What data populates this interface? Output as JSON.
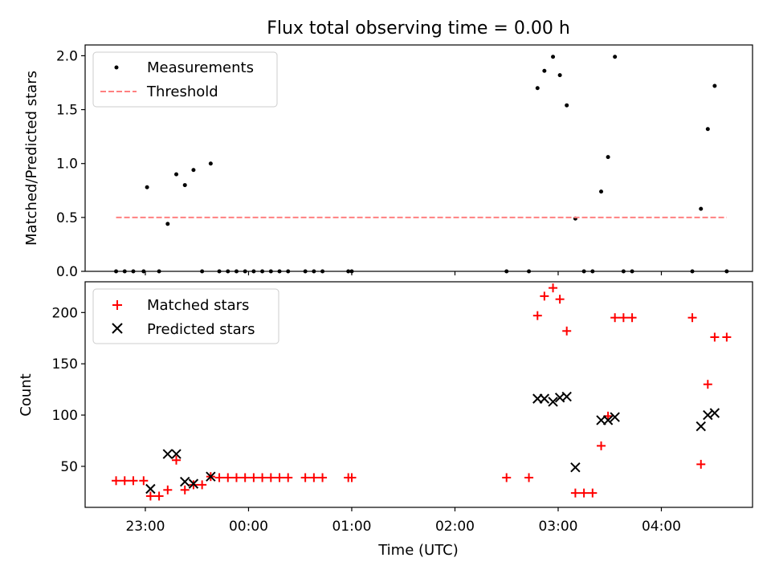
{
  "chart_data": [
    {
      "type": "scatter",
      "title": "Flux total observing time = 0.00 h",
      "xlabel": "",
      "ylabel": "Matched/Predicted stars",
      "xlim": [
        "22:25",
        "04:53"
      ],
      "ylim": [
        0.0,
        2.1
      ],
      "yticks": [
        0.0,
        0.5,
        1.0,
        1.5,
        2.0
      ],
      "ytick_labels": [
        "0.0",
        "0.5",
        "1.0",
        "1.5",
        "2.0"
      ],
      "xticks": [
        "23:00",
        "00:00",
        "01:00",
        "02:00",
        "03:00",
        "04:00"
      ],
      "legend": {
        "position": "top-left",
        "entries": [
          {
            "label": "Measurements",
            "style": "dot",
            "color": "#000000"
          },
          {
            "label": "Threshold",
            "style": "dashed-line",
            "color": "#ff8080"
          }
        ]
      },
      "series": [
        {
          "name": "Measurements",
          "color": "#000000",
          "points": [
            [
              "22:43",
              0
            ],
            [
              "22:48",
              0
            ],
            [
              "22:53",
              0
            ],
            [
              "22:59",
              0
            ],
            [
              "23:01",
              0.78
            ],
            [
              "23:08",
              0
            ],
            [
              "23:13",
              0.44
            ],
            [
              "23:18",
              0.9
            ],
            [
              "23:23",
              0.8
            ],
            [
              "23:28",
              0.94
            ],
            [
              "23:33",
              0
            ],
            [
              "23:38",
              1.0
            ],
            [
              "23:43",
              0
            ],
            [
              "23:48",
              0
            ],
            [
              "23:53",
              0
            ],
            [
              "23:58",
              0
            ],
            [
              "00:03",
              0
            ],
            [
              "00:08",
              0
            ],
            [
              "00:13",
              0
            ],
            [
              "00:18",
              0
            ],
            [
              "00:23",
              0
            ],
            [
              "00:33",
              0
            ],
            [
              "00:38",
              0
            ],
            [
              "00:43",
              0
            ],
            [
              "00:58",
              0
            ],
            [
              "01:00",
              0
            ],
            [
              "02:30",
              0
            ],
            [
              "02:43",
              0
            ],
            [
              "02:48",
              1.7
            ],
            [
              "02:52",
              1.86
            ],
            [
              "02:57",
              1.99
            ],
            [
              "03:01",
              1.82
            ],
            [
              "03:05",
              1.54
            ],
            [
              "03:10",
              0.49
            ],
            [
              "03:15",
              0
            ],
            [
              "03:20",
              0
            ],
            [
              "03:25",
              0.74
            ],
            [
              "03:29",
              1.06
            ],
            [
              "03:33",
              1.99
            ],
            [
              "03:38",
              0
            ],
            [
              "03:43",
              0
            ],
            [
              "04:18",
              0
            ],
            [
              "04:23",
              0.58
            ],
            [
              "04:27",
              1.32
            ],
            [
              "04:31",
              1.72
            ],
            [
              "04:38",
              0
            ]
          ]
        },
        {
          "name": "Threshold",
          "color": "#ff8080",
          "dashed": true,
          "points": [
            [
              "22:43",
              0.5
            ],
            [
              "04:38",
              0.5
            ]
          ]
        }
      ]
    },
    {
      "type": "scatter",
      "title": "",
      "xlabel": "Time (UTC)",
      "ylabel": "Count",
      "xlim": [
        "22:25",
        "04:53"
      ],
      "ylim": [
        10,
        230
      ],
      "yticks": [
        50,
        100,
        150,
        200
      ],
      "ytick_labels": [
        "50",
        "100",
        "150",
        "200"
      ],
      "xticks": [
        "23:00",
        "00:00",
        "01:00",
        "02:00",
        "03:00",
        "04:00"
      ],
      "xtick_labels": [
        "23:00",
        "00:00",
        "01:00",
        "02:00",
        "03:00",
        "04:00"
      ],
      "legend": {
        "position": "top-left",
        "entries": [
          {
            "label": "Matched stars",
            "style": "plus",
            "color": "#ff0000"
          },
          {
            "label": "Predicted stars",
            "style": "x",
            "color": "#000000"
          }
        ]
      },
      "series": [
        {
          "name": "Matched stars",
          "marker": "plus",
          "color": "#ff0000",
          "points": [
            [
              "22:43",
              36
            ],
            [
              "22:48",
              36
            ],
            [
              "22:53",
              36
            ],
            [
              "22:59",
              36
            ],
            [
              "23:03",
              21
            ],
            [
              "23:08",
              21
            ],
            [
              "23:13",
              27
            ],
            [
              "23:18",
              56
            ],
            [
              "23:23",
              27
            ],
            [
              "23:28",
              32
            ],
            [
              "23:33",
              32
            ],
            [
              "23:38",
              40
            ],
            [
              "23:43",
              39
            ],
            [
              "23:48",
              39
            ],
            [
              "23:53",
              39
            ],
            [
              "23:58",
              39
            ],
            [
              "00:03",
              39
            ],
            [
              "00:08",
              39
            ],
            [
              "00:13",
              39
            ],
            [
              "00:18",
              39
            ],
            [
              "00:23",
              39
            ],
            [
              "00:33",
              39
            ],
            [
              "00:38",
              39
            ],
            [
              "00:43",
              39
            ],
            [
              "00:58",
              39
            ],
            [
              "01:00",
              39
            ],
            [
              "02:30",
              39
            ],
            [
              "02:43",
              39
            ],
            [
              "02:48",
              197
            ],
            [
              "02:52",
              216
            ],
            [
              "02:57",
              224
            ],
            [
              "03:01",
              213
            ],
            [
              "03:05",
              182
            ],
            [
              "03:10",
              24
            ],
            [
              "03:15",
              24
            ],
            [
              "03:20",
              24
            ],
            [
              "03:25",
              70
            ],
            [
              "03:29",
              99
            ],
            [
              "03:33",
              195
            ],
            [
              "03:38",
              195
            ],
            [
              "03:43",
              195
            ],
            [
              "04:18",
              195
            ],
            [
              "04:23",
              52
            ],
            [
              "04:27",
              130
            ],
            [
              "04:31",
              176
            ],
            [
              "04:38",
              176
            ]
          ]
        },
        {
          "name": "Predicted stars",
          "marker": "x",
          "color": "#000000",
          "points": [
            [
              "23:03",
              28
            ],
            [
              "23:13",
              62
            ],
            [
              "23:18",
              62
            ],
            [
              "23:23",
              35
            ],
            [
              "23:28",
              33
            ],
            [
              "23:38",
              40
            ],
            [
              "02:48",
              116
            ],
            [
              "02:52",
              116
            ],
            [
              "02:57",
              113
            ],
            [
              "03:01",
              117
            ],
            [
              "03:05",
              118
            ],
            [
              "03:10",
              49
            ],
            [
              "03:25",
              95
            ],
            [
              "03:29",
              95
            ],
            [
              "03:33",
              98
            ],
            [
              "04:23",
              89
            ],
            [
              "04:27",
              100
            ],
            [
              "04:31",
              102
            ]
          ]
        }
      ]
    }
  ]
}
